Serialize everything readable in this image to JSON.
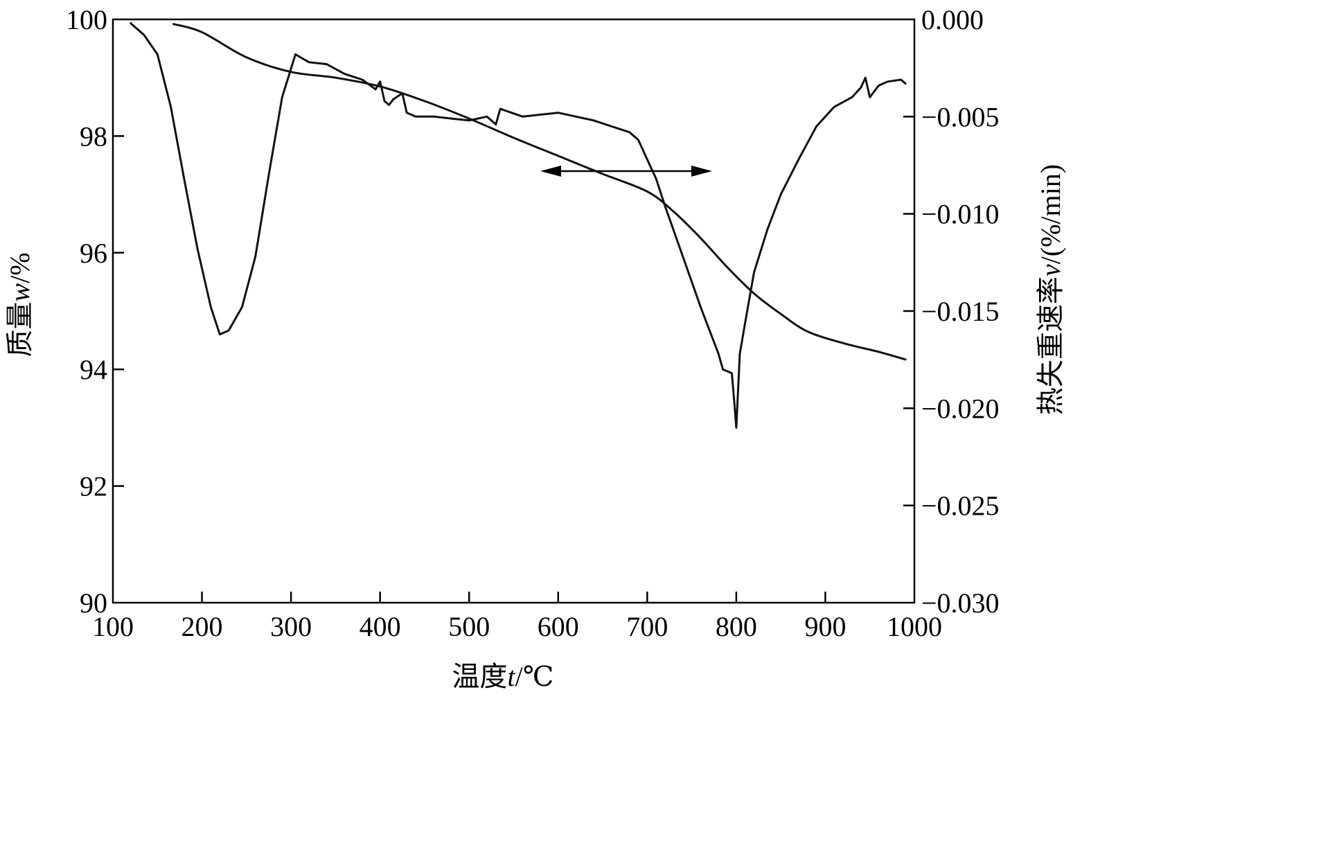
{
  "chart_data": {
    "type": "line",
    "x_axis": {
      "label_prefix": "温度",
      "label_var": "t",
      "label_unit": "/℃",
      "range": [
        100,
        1000
      ],
      "ticks": [
        "100",
        "200",
        "300",
        "400",
        "500",
        "600",
        "700",
        "800",
        "900",
        "1000"
      ]
    },
    "y_axis_left": {
      "label_prefix": "质量",
      "label_var": "w",
      "label_unit": "/%",
      "range": [
        90,
        100
      ],
      "ticks": [
        "90",
        "92",
        "94",
        "96",
        "98",
        "100"
      ]
    },
    "y_axis_right": {
      "label_prefix": "热失重速率",
      "label_var": "v",
      "label_unit": "/(%/min)",
      "range": [
        -0.03,
        0
      ],
      "ticks": [
        "0.000",
        "−0.005",
        "−0.010",
        "−0.015",
        "−0.020",
        "−0.025",
        "−0.030"
      ]
    },
    "grid": false,
    "annotation": "double-headed arrow between the two curves",
    "series": [
      {
        "axis": "left",
        "x": [
          168,
          200,
          250,
          300,
          350,
          400,
          450,
          500,
          550,
          600,
          650,
          700,
          730,
          760,
          790,
          820,
          850,
          880,
          920,
          960,
          990
        ],
        "y": [
          99.92,
          99.78,
          99.35,
          99.1,
          99.0,
          98.85,
          98.6,
          98.3,
          97.97,
          97.66,
          97.35,
          97.05,
          96.7,
          96.25,
          95.75,
          95.3,
          94.95,
          94.65,
          94.45,
          94.3,
          94.17
        ]
      },
      {
        "axis": "right",
        "x": [
          120,
          135,
          150,
          165,
          180,
          195,
          210,
          220,
          230,
          245,
          260,
          275,
          290,
          305,
          320,
          340,
          360,
          380,
          395,
          400,
          405,
          410,
          415,
          425,
          430,
          440,
          460,
          480,
          500,
          520,
          530,
          535,
          560,
          580,
          600,
          620,
          640,
          660,
          680,
          690,
          700,
          710,
          720,
          740,
          760,
          780,
          785,
          795,
          798,
          800,
          804,
          810,
          820,
          835,
          850,
          870,
          890,
          910,
          930,
          940,
          945,
          950,
          960,
          970,
          985,
          990
        ],
        "y": [
          -0.0002,
          -0.0008,
          -0.0018,
          -0.0045,
          -0.0082,
          -0.0118,
          -0.0148,
          -0.0162,
          -0.016,
          -0.0148,
          -0.0122,
          -0.008,
          -0.004,
          -0.0018,
          -0.0022,
          -0.0023,
          -0.0028,
          -0.0031,
          -0.0036,
          -0.0032,
          -0.0042,
          -0.0044,
          -0.0041,
          -0.0038,
          -0.0048,
          -0.005,
          -0.005,
          -0.0051,
          -0.0052,
          -0.005,
          -0.0054,
          -0.0046,
          -0.005,
          -0.0049,
          -0.0048,
          -0.005,
          -0.0052,
          -0.0055,
          -0.0058,
          -0.0062,
          -0.0072,
          -0.0082,
          -0.0096,
          -0.0122,
          -0.0148,
          -0.0172,
          -0.018,
          -0.0182,
          -0.0198,
          -0.021,
          -0.0172,
          -0.0156,
          -0.013,
          -0.0108,
          -0.009,
          -0.0072,
          -0.0055,
          -0.0045,
          -0.004,
          -0.0035,
          -0.003,
          -0.004,
          -0.0034,
          -0.0032,
          -0.0031,
          -0.0033
        ]
      }
    ]
  }
}
